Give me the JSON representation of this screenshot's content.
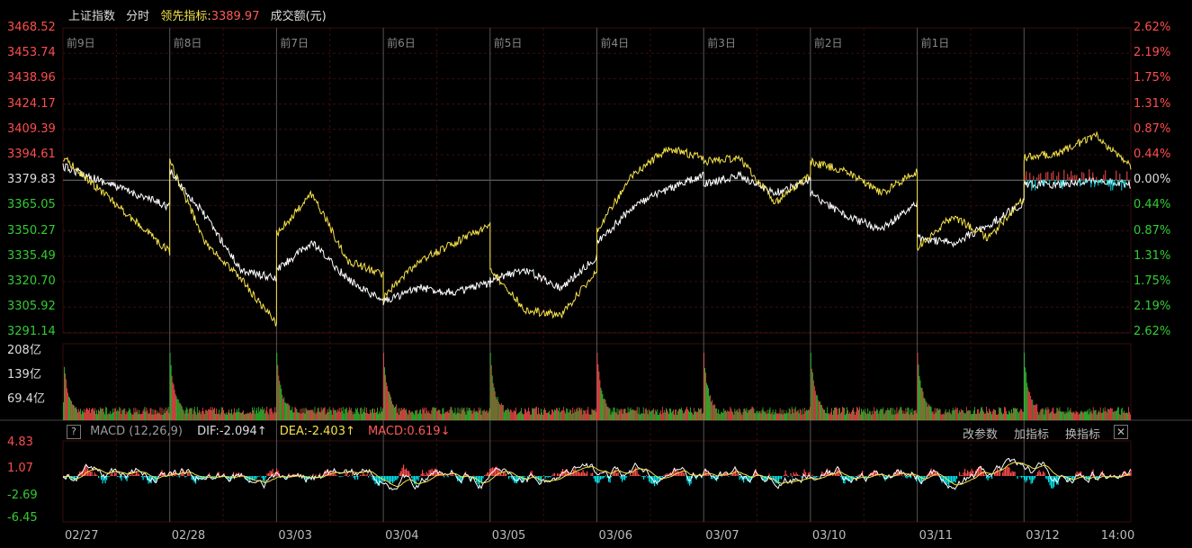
{
  "header": {
    "title": "上证指数",
    "period": "分时",
    "lead_label": "领先指标:",
    "lead_value": "3389.97",
    "volume_label": "成交额(元)"
  },
  "price_axis_left": [
    "3468.52",
    "3453.74",
    "3438.96",
    "3424.17",
    "3409.39",
    "3394.61",
    "3379.83",
    "3365.05",
    "3350.27",
    "3335.49",
    "3320.70",
    "3305.92",
    "3291.14"
  ],
  "price_axis_right": [
    "2.62%",
    "2.19%",
    "1.75%",
    "1.31%",
    "0.87%",
    "0.44%",
    "0.00%",
    "0.44%",
    "0.87%",
    "1.31%",
    "1.75%",
    "2.19%",
    "2.62%"
  ],
  "day_labels": [
    "前9日",
    "前8日",
    "前7日",
    "前6日",
    "前5日",
    "前4日",
    "前3日",
    "前2日",
    "前1日"
  ],
  "volume_axis": [
    "208亿",
    "139亿",
    "69.4亿"
  ],
  "macd": {
    "help": "?",
    "title": "MACD (12,26,9)",
    "dif": "DIF:-2.094↑",
    "dea": "DEA:-2.403↑",
    "macd": "MACD:0.619↓",
    "axis": [
      "4.83",
      "1.07",
      "-2.69",
      "-6.45"
    ],
    "btn_params": "改参数",
    "btn_add": "加指标",
    "btn_swap": "换指标",
    "btn_close": "✕"
  },
  "x_axis": [
    "02/27",
    "02/28",
    "03/03",
    "03/04",
    "03/05",
    "03/06",
    "03/07",
    "03/10",
    "03/11",
    "03/12",
    "14:00"
  ],
  "colors": {
    "up": "#ff4d4d",
    "down": "#33cc33",
    "price": "#ffffff",
    "lead": "#f5e14a",
    "macd_neg": "#00e5ee",
    "grid": "#3a0d0d"
  }
}
